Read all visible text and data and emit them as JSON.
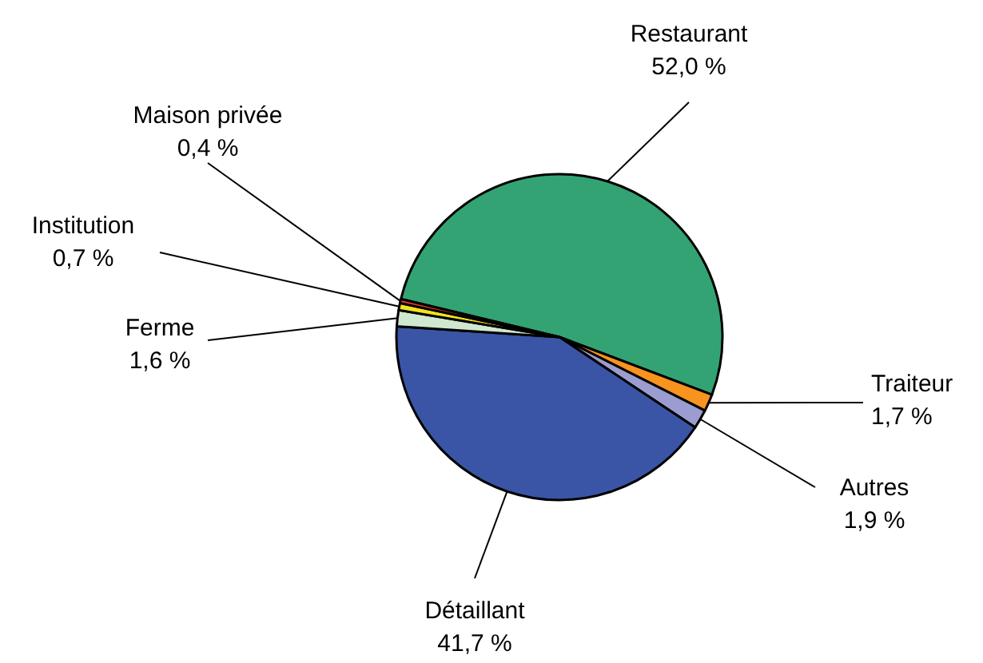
{
  "chart_data": {
    "type": "pie",
    "categories": [
      "Restaurant",
      "Traiteur",
      "Autres",
      "Détaillant",
      "Ferme",
      "Institution",
      "Maison privée"
    ],
    "values": [
      52.0,
      1.7,
      1.9,
      41.7,
      1.6,
      0.7,
      0.4
    ],
    "colors": [
      "#33a374",
      "#f7931e",
      "#9b9dd0",
      "#3a55a5",
      "#cfe8cf",
      "#f2e21a",
      "#e83a2a"
    ],
    "value_labels": [
      "52,0 %",
      "1,7 %",
      "1,9 %",
      "41,7 %",
      "1,6 %",
      "0,7 %",
      "0,4 %"
    ]
  }
}
